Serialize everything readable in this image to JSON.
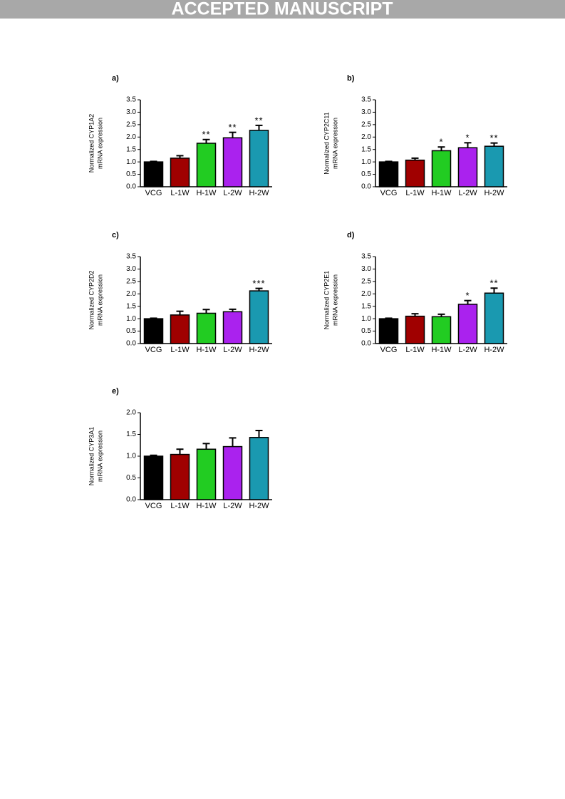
{
  "header": "ACCEPTED MANUSCRIPT",
  "chart_data": [
    {
      "type": "bar",
      "panel_label": "a)",
      "ylabel": [
        "Normalized CYP1A2",
        "mRNA expression"
      ],
      "categories": [
        "VCG",
        "L-1W",
        "H-1W",
        "L-2W",
        "H-2W"
      ],
      "values": [
        1.0,
        1.15,
        1.75,
        1.97,
        2.27
      ],
      "errors": [
        0.02,
        0.1,
        0.15,
        0.22,
        0.2
      ],
      "annotations": [
        null,
        null,
        "**",
        "**",
        "**"
      ],
      "colors": [
        "#000000",
        "#a00000",
        "#22cc22",
        "#aa22ee",
        "#1a99b0"
      ],
      "ylim": [
        0,
        3.5
      ],
      "yticks": [
        {
          "value": 0,
          "label": "0.0"
        },
        {
          "value": 0.5,
          "label": "0.5"
        },
        {
          "value": 1,
          "label": "1.0"
        },
        {
          "value": 1.5,
          "label": "1.5"
        },
        {
          "value": 2,
          "label": "2.0"
        },
        {
          "value": 2.5,
          "label": "2.5"
        },
        {
          "value": 3,
          "label": "3.0"
        },
        {
          "value": 3.5,
          "label": "3.5"
        }
      ]
    },
    {
      "type": "bar",
      "panel_label": "b)",
      "ylabel": [
        "Normalized CYP2C11",
        "mRNA expression"
      ],
      "categories": [
        "VCG",
        "L-1W",
        "H-1W",
        "L-2W",
        "H-2W"
      ],
      "values": [
        1.0,
        1.07,
        1.45,
        1.57,
        1.63
      ],
      "errors": [
        0.02,
        0.08,
        0.15,
        0.2,
        0.13
      ],
      "annotations": [
        null,
        null,
        "*",
        "*",
        "**"
      ],
      "colors": [
        "#000000",
        "#a00000",
        "#22cc22",
        "#aa22ee",
        "#1a99b0"
      ],
      "ylim": [
        0,
        3.5
      ],
      "yticks": [
        {
          "value": 0,
          "label": "0.0"
        },
        {
          "value": 0.5,
          "label": "0.5"
        },
        {
          "value": 1,
          "label": "1.0"
        },
        {
          "value": 1.5,
          "label": "1.5"
        },
        {
          "value": 2,
          "label": "2.0"
        },
        {
          "value": 2.5,
          "label": "2.5"
        },
        {
          "value": 3,
          "label": "3.0"
        },
        {
          "value": 3.5,
          "label": "3.5"
        }
      ]
    },
    {
      "type": "bar",
      "panel_label": "c)",
      "ylabel": [
        "Normalized CYP2D2",
        "mRNA expression"
      ],
      "categories": [
        "VCG",
        "L-1W",
        "H-1W",
        "L-2W",
        "H-2W"
      ],
      "values": [
        1.0,
        1.15,
        1.22,
        1.28,
        2.12
      ],
      "errors": [
        0.02,
        0.15,
        0.15,
        0.1,
        0.1
      ],
      "annotations": [
        null,
        null,
        null,
        null,
        "***"
      ],
      "colors": [
        "#000000",
        "#a00000",
        "#22cc22",
        "#aa22ee",
        "#1a99b0"
      ],
      "ylim": [
        0,
        3.5
      ],
      "yticks": [
        {
          "value": 0,
          "label": "0.0"
        },
        {
          "value": 0.5,
          "label": "0.5"
        },
        {
          "value": 1,
          "label": "1.0"
        },
        {
          "value": 1.5,
          "label": "1.5"
        },
        {
          "value": 2,
          "label": "2.0"
        },
        {
          "value": 2.5,
          "label": "2.5"
        },
        {
          "value": 3,
          "label": "3.0"
        },
        {
          "value": 3.5,
          "label": "3.5"
        }
      ]
    },
    {
      "type": "bar",
      "panel_label": "d)",
      "ylabel": [
        "Normalized CYP2E1",
        "mRNA expression"
      ],
      "categories": [
        "VCG",
        "L-1W",
        "H-1W",
        "L-2W",
        "H-2W"
      ],
      "values": [
        1.0,
        1.1,
        1.08,
        1.58,
        2.03
      ],
      "errors": [
        0.02,
        0.1,
        0.1,
        0.15,
        0.2
      ],
      "annotations": [
        null,
        null,
        null,
        "*",
        "**"
      ],
      "colors": [
        "#000000",
        "#a00000",
        "#22cc22",
        "#aa22ee",
        "#1a99b0"
      ],
      "ylim": [
        0,
        3.5
      ],
      "yticks": [
        {
          "value": 0,
          "label": "0.0"
        },
        {
          "value": 0.5,
          "label": "0.5"
        },
        {
          "value": 1,
          "label": "1.0"
        },
        {
          "value": 1.5,
          "label": "1.5"
        },
        {
          "value": 2,
          "label": "2.0"
        },
        {
          "value": 2.5,
          "label": "2.5"
        },
        {
          "value": 3,
          "label": "3.0"
        },
        {
          "value": 3.5,
          "label": "3.5"
        }
      ]
    },
    {
      "type": "bar",
      "panel_label": "e)",
      "ylabel": [
        "Normalized CYP3A1",
        "mRNA expression"
      ],
      "categories": [
        "VCG",
        "L-1W",
        "H-1W",
        "L-2W",
        "H-2W"
      ],
      "values": [
        1.0,
        1.04,
        1.16,
        1.22,
        1.43
      ],
      "errors": [
        0.02,
        0.12,
        0.13,
        0.2,
        0.16
      ],
      "colors": [
        "#000000",
        "#a00000",
        "#22cc22",
        "#aa22ee",
        "#1a99b0"
      ],
      "ylim": [
        0,
        2
      ],
      "yticks": [
        {
          "value": 0,
          "label": "0.0"
        },
        {
          "value": 0.5,
          "label": "0.5"
        },
        {
          "value": 1,
          "label": "1.0"
        },
        {
          "value": 1.5,
          "label": "1.5"
        },
        {
          "value": 2,
          "label": "2.0"
        }
      ]
    }
  ]
}
